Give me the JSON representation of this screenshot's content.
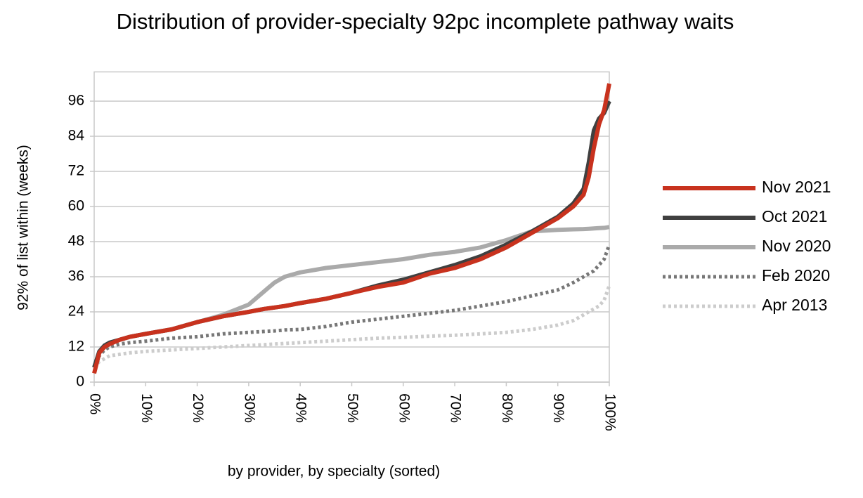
{
  "chart_data": {
    "type": "line",
    "title": "Distribution of provider-specialty 92pc incomplete pathway waits",
    "x_label": "by provider, by specialty (sorted)",
    "y_label": "92% of list within (weeks)",
    "x": [
      0,
      1,
      2,
      3,
      5,
      7,
      10,
      15,
      20,
      25,
      30,
      33,
      35,
      37,
      40,
      45,
      50,
      55,
      60,
      65,
      70,
      75,
      80,
      85,
      90,
      93,
      95,
      96,
      97,
      98,
      99,
      100
    ],
    "xlim": [
      0,
      100
    ],
    "xticks": [
      {
        "value": 0,
        "label": "0%"
      },
      {
        "value": 10,
        "label": "10%"
      },
      {
        "value": 20,
        "label": "20%"
      },
      {
        "value": 30,
        "label": "30%"
      },
      {
        "value": 40,
        "label": "40%"
      },
      {
        "value": 50,
        "label": "50%"
      },
      {
        "value": 60,
        "label": "60%"
      },
      {
        "value": 70,
        "label": "70%"
      },
      {
        "value": 80,
        "label": "80%"
      },
      {
        "value": 90,
        "label": "90%"
      },
      {
        "value": 100,
        "label": "100%"
      }
    ],
    "ylim": [
      0,
      106
    ],
    "yticks": [
      0,
      12,
      24,
      36,
      48,
      60,
      72,
      84,
      96
    ],
    "grid": true,
    "legend": "right",
    "series": [
      {
        "name": "Apr 2013",
        "color": "#cccccc",
        "dash": "dotted",
        "values": [
          5,
          7,
          8,
          9,
          9.5,
          10,
          10.5,
          11,
          11.5,
          12,
          12.5,
          12.8,
          13,
          13.2,
          13.5,
          14,
          14.5,
          15,
          15.3,
          15.7,
          16,
          16.5,
          17,
          18,
          19.5,
          21,
          23,
          24,
          25,
          26,
          28,
          33
        ]
      },
      {
        "name": "Feb 2020",
        "color": "#777777",
        "dash": "dotted",
        "values": [
          5,
          9,
          11,
          12,
          13,
          13.5,
          14,
          15,
          15.5,
          16.5,
          17,
          17.3,
          17.5,
          17.8,
          18,
          19,
          20.5,
          21.5,
          22.5,
          23.5,
          24.5,
          26,
          27.5,
          29.5,
          31.5,
          34,
          36,
          37,
          38,
          40,
          42,
          47
        ]
      },
      {
        "name": "Nov 2020",
        "color": "#aaaaaa",
        "dash": "solid",
        "values": [
          5,
          10,
          12,
          13,
          14.5,
          15.5,
          16.5,
          18,
          20.5,
          23,
          26.5,
          31,
          34,
          36,
          37.5,
          39,
          40,
          41,
          42,
          43.5,
          44.5,
          46,
          48.5,
          51.5,
          52,
          52.2,
          52.3,
          52.4,
          52.5,
          52.6,
          52.7,
          53
        ]
      },
      {
        "name": "Oct 2021",
        "color": "#404040",
        "dash": "solid",
        "values": [
          5,
          10.5,
          12.5,
          13.5,
          14.5,
          15.5,
          16.5,
          18,
          20.5,
          22.5,
          24,
          25,
          25.5,
          26,
          27,
          28.5,
          30.5,
          33,
          35,
          37.5,
          40,
          43,
          47,
          51.5,
          56.5,
          61,
          66,
          75,
          86,
          90,
          92,
          96
        ]
      },
      {
        "name": "Nov 2021",
        "color": "#c8321e",
        "dash": "solid",
        "values": [
          3,
          10,
          12,
          13,
          14.5,
          15.5,
          16.5,
          18,
          20.5,
          22.5,
          24,
          25,
          25.5,
          26,
          27,
          28.5,
          30.5,
          32.5,
          34,
          37,
          39,
          42,
          46,
          51,
          56,
          60,
          64,
          70,
          80,
          88,
          93,
          102
        ]
      }
    ]
  }
}
